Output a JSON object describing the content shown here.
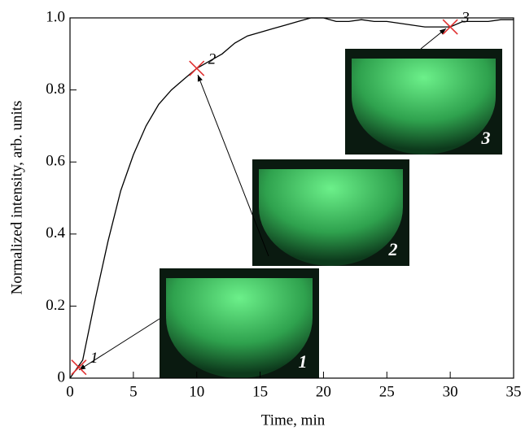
{
  "chart_data": {
    "type": "line",
    "xlabel": "Time, min",
    "ylabel": "Normalized intensity, arb. units",
    "x": [
      0,
      1,
      2,
      3,
      4,
      5,
      6,
      7,
      8,
      9,
      10,
      11,
      12,
      13,
      14,
      15,
      16,
      17,
      18,
      19,
      20,
      21,
      22,
      23,
      24,
      25,
      26,
      27,
      28,
      29,
      30,
      31,
      32,
      33,
      34,
      35
    ],
    "series": [
      {
        "color": "#000000",
        "values": [
          0,
          0.05,
          0.22,
          0.38,
          0.52,
          0.62,
          0.7,
          0.76,
          0.8,
          0.83,
          0.86,
          0.88,
          0.9,
          0.93,
          0.95,
          0.96,
          0.97,
          0.98,
          0.99,
          1.0,
          1.0,
          0.99,
          0.99,
          0.995,
          0.99,
          0.99,
          0.985,
          0.98,
          0.975,
          0.975,
          0.975,
          0.99,
          0.99,
          0.99,
          0.995,
          0.995
        ]
      }
    ],
    "xlim": [
      0,
      35
    ],
    "xticks": [
      0,
      5,
      10,
      15,
      20,
      25,
      30,
      35
    ],
    "ylim": [
      0,
      1
    ],
    "yticks": [
      0,
      0.2,
      0.4,
      0.6,
      0.8,
      {
        "value": 1,
        "label": "1.0"
      }
    ],
    "marker_color": "#e03030",
    "markers": [
      {
        "x": 0.7,
        "y": 0.03,
        "label": "1"
      },
      {
        "x": 10,
        "y": 0.86,
        "label": "2"
      },
      {
        "x": 30,
        "y": 0.975,
        "label": "3"
      }
    ],
    "insets": [
      {
        "label": "1"
      },
      {
        "label": "2"
      },
      {
        "label": "3"
      }
    ]
  }
}
